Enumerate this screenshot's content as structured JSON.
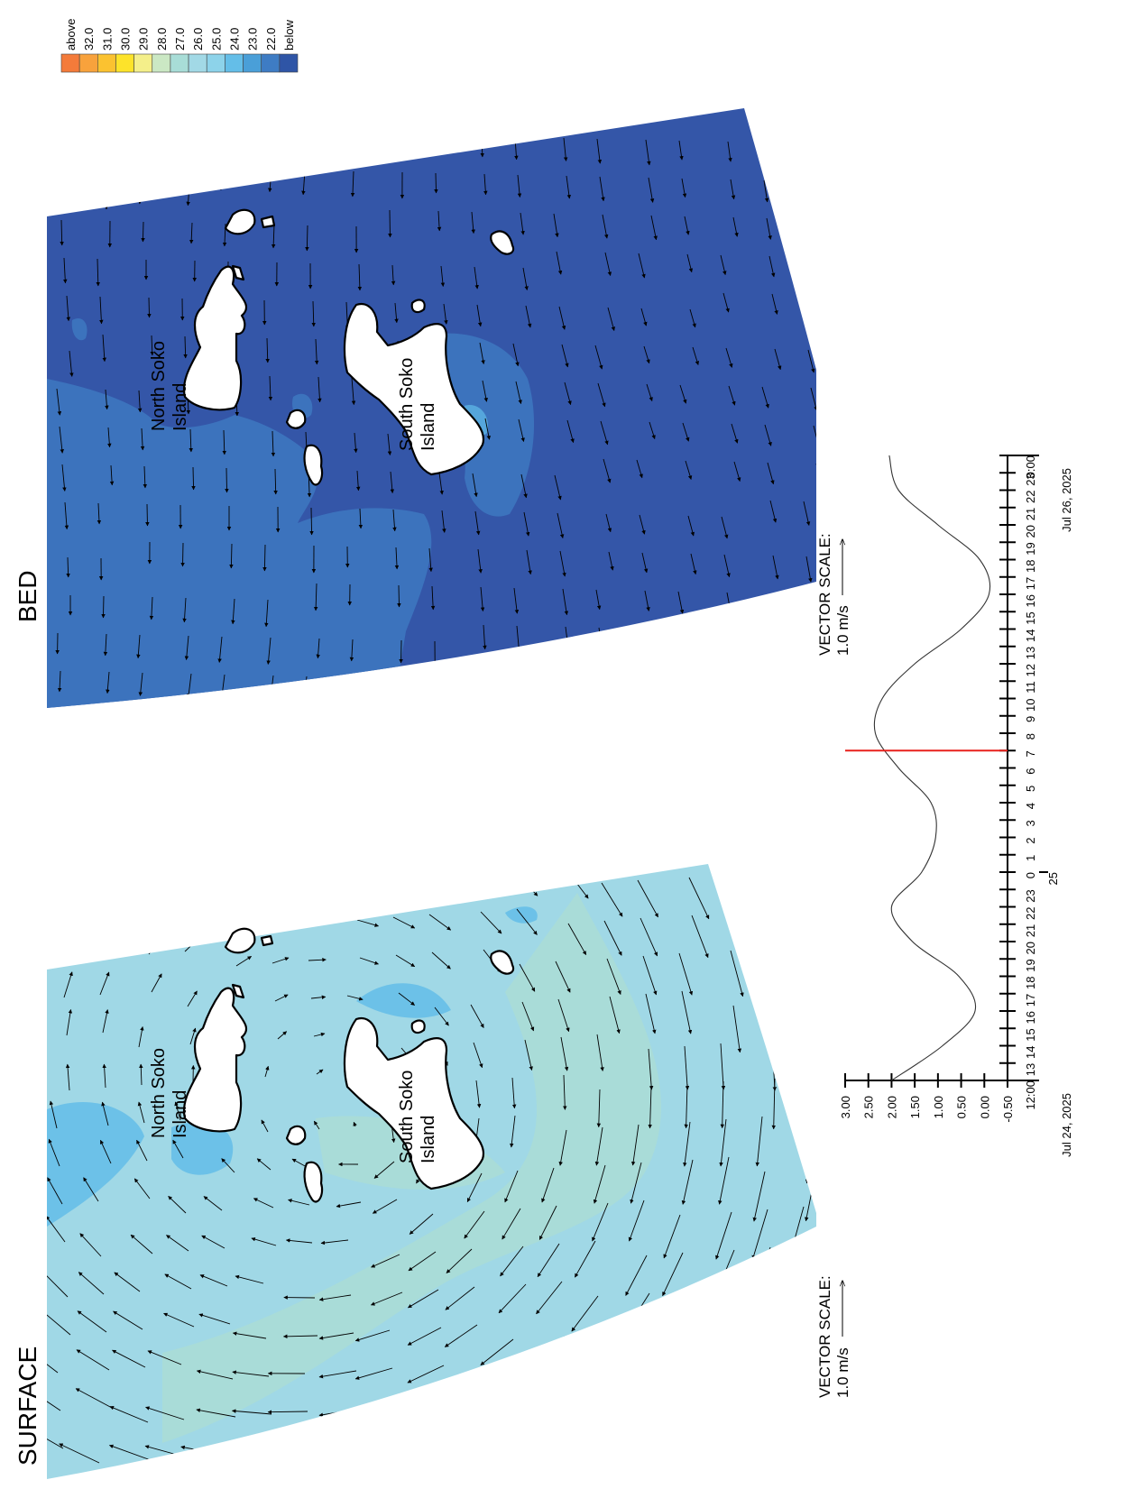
{
  "panels": {
    "surface": {
      "title": "SURFACE",
      "islands": [
        "North Soko\nIsland",
        "South Soko\nIsland"
      ]
    },
    "bed": {
      "title": "BED",
      "islands": [
        "North Soko\nIsland",
        "South Soko\nIsland"
      ]
    }
  },
  "vector_scale": {
    "label": "VECTOR SCALE:",
    "value": "1.0 m/s"
  },
  "legend": {
    "labels": [
      "above",
      "32.0",
      "31.0",
      "30.0",
      "29.0",
      "28.0",
      "27.0",
      "26.0",
      "25.0",
      "24.0",
      "23.0",
      "22.0",
      "below"
    ],
    "colors": [
      "#f47b3a",
      "#f8a23c",
      "#fbc230",
      "#fde32a",
      "#f4ef8a",
      "#cbe8c4",
      "#a8ddd7",
      "#a2d9e6",
      "#8dd3ea",
      "#64bee8",
      "#4a9fd8",
      "#3e7cc4",
      "#2f55a6"
    ]
  },
  "colors": {
    "surface_base": "#a0d8e6",
    "surface_light": "#a9dcd8",
    "surface_dark": "#6cc1e8",
    "bed_base": "#3456a8",
    "bed_mid": "#3c73bd",
    "bed_light": "#55a6dc",
    "marker": "#e8201c"
  },
  "timeseries": {
    "y_ticks": [
      "3.00",
      "2.50",
      "2.00",
      "1.50",
      "1.00",
      "0.50",
      "0.00",
      "-0.50"
    ],
    "x_ticks": [
      "12:00",
      "13",
      "14",
      "15",
      "16",
      "17",
      "18",
      "19",
      "20",
      "21",
      "22",
      "23",
      "0",
      "1",
      "2",
      "3",
      "4",
      "5",
      "6",
      "7",
      "8",
      "9",
      "10",
      "11",
      "12",
      "13",
      "14",
      "15",
      "16",
      "17",
      "18",
      "19",
      "20",
      "21",
      "22",
      "23",
      "0:00"
    ],
    "day_label": "25",
    "start_date": "Jul 24, 2025",
    "end_date": "Jul 26, 2025",
    "series_hours": [
      0,
      2,
      4,
      6,
      8,
      10,
      12,
      14,
      16,
      18,
      20,
      22,
      24,
      26,
      28,
      30,
      32,
      34,
      36
    ],
    "series_values": [
      2.0,
      0.9,
      0.2,
      0.55,
      1.55,
      2.0,
      1.35,
      1.05,
      1.15,
      1.85,
      2.35,
      2.2,
      1.5,
      0.5,
      -0.1,
      0.1,
      1.0,
      1.85,
      2.05
    ],
    "marker_hour": 19
  }
}
